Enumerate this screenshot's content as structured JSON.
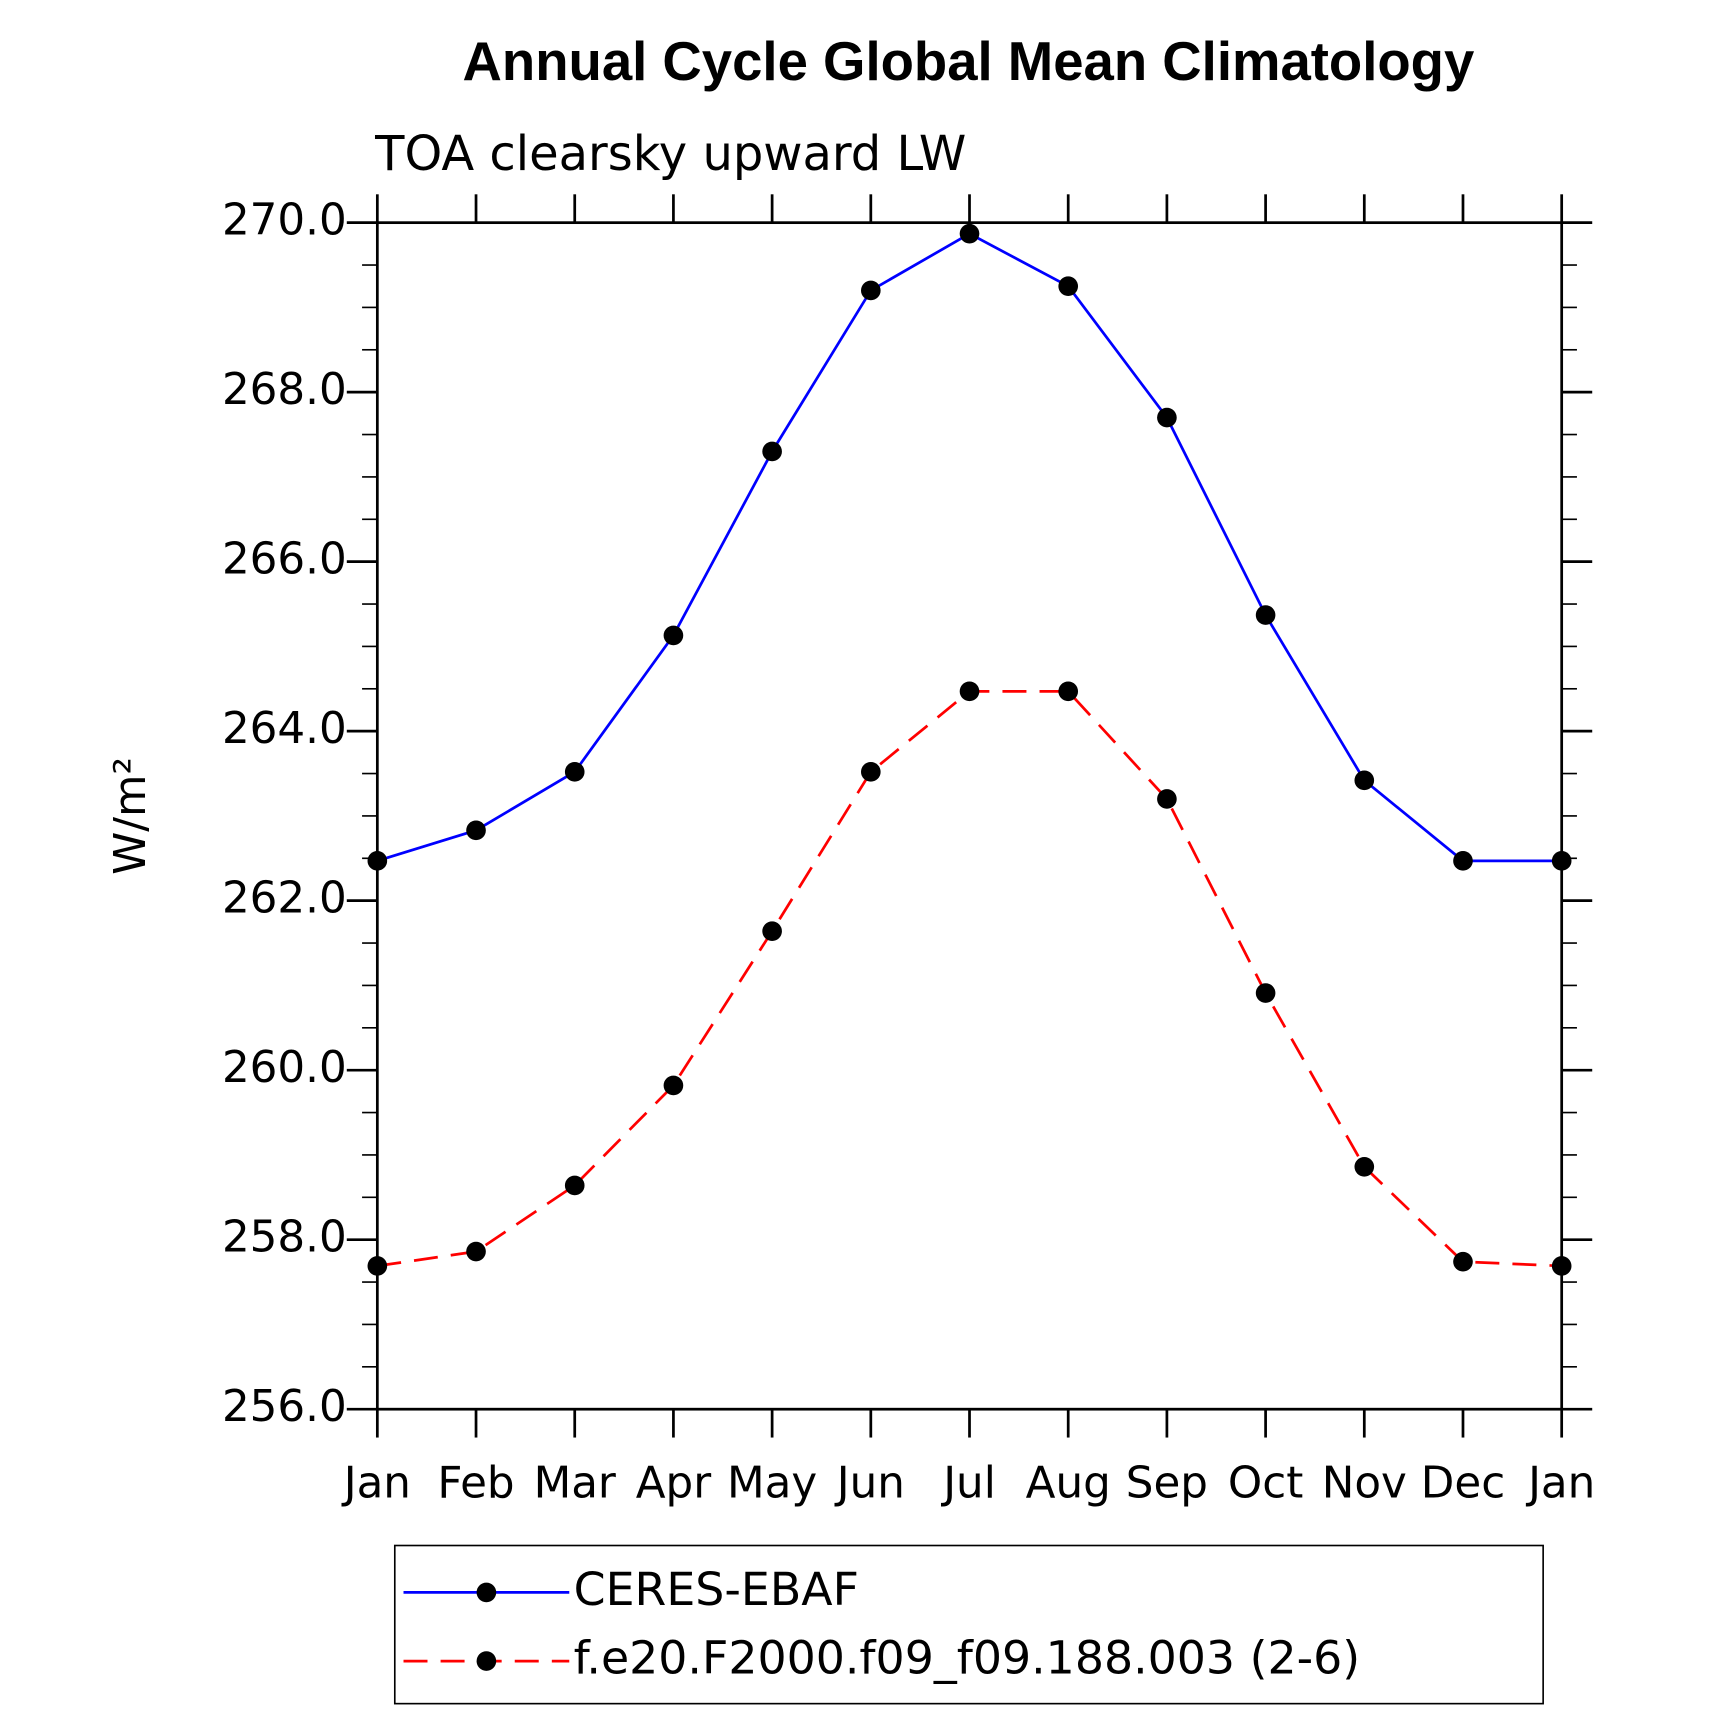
{
  "chart_data": {
    "type": "line",
    "title": "Annual Cycle Global Mean Climatology",
    "subtitle": "TOA clearsky upward LW",
    "ylabel": "W/m²",
    "categories": [
      "Jan",
      "Feb",
      "Mar",
      "Apr",
      "May",
      "Jun",
      "Jul",
      "Aug",
      "Sep",
      "Oct",
      "Nov",
      "Dec",
      "Jan"
    ],
    "series": [
      {
        "name": "CERES-EBAF",
        "color": "#0000ff",
        "dash": "solid",
        "values": [
          262.47,
          262.83,
          263.52,
          265.13,
          267.3,
          269.2,
          269.87,
          269.25,
          267.7,
          265.37,
          263.42,
          262.47,
          262.47
        ]
      },
      {
        "name": "f.e20.F2000.f09_f09.188.003 (2-6)",
        "color": "#ff0000",
        "dash": "dashed",
        "values": [
          257.69,
          257.86,
          258.64,
          259.82,
          261.64,
          263.52,
          264.47,
          264.47,
          263.2,
          260.91,
          258.86,
          257.74,
          257.69
        ]
      }
    ],
    "marker_color": "#000000",
    "ylim": [
      256,
      270
    ],
    "yticks": [
      {
        "value": 256,
        "label": "256.0"
      },
      {
        "value": 258,
        "label": "258.0"
      },
      {
        "value": 260,
        "label": "260.0"
      },
      {
        "value": 262,
        "label": "262.0"
      },
      {
        "value": 264,
        "label": "264.0"
      },
      {
        "value": 266,
        "label": "266.0"
      },
      {
        "value": 268,
        "label": "268.0"
      },
      {
        "value": 270,
        "label": "270.0"
      }
    ],
    "yminorticks": [
      256.5,
      257,
      257.5,
      258.5,
      259,
      259.5,
      260.5,
      261,
      261.5,
      262.5,
      263,
      263.5,
      264.5,
      265,
      265.5,
      266.5,
      267,
      267.5,
      268.5,
      269,
      269.5
    ],
    "grid": false
  }
}
